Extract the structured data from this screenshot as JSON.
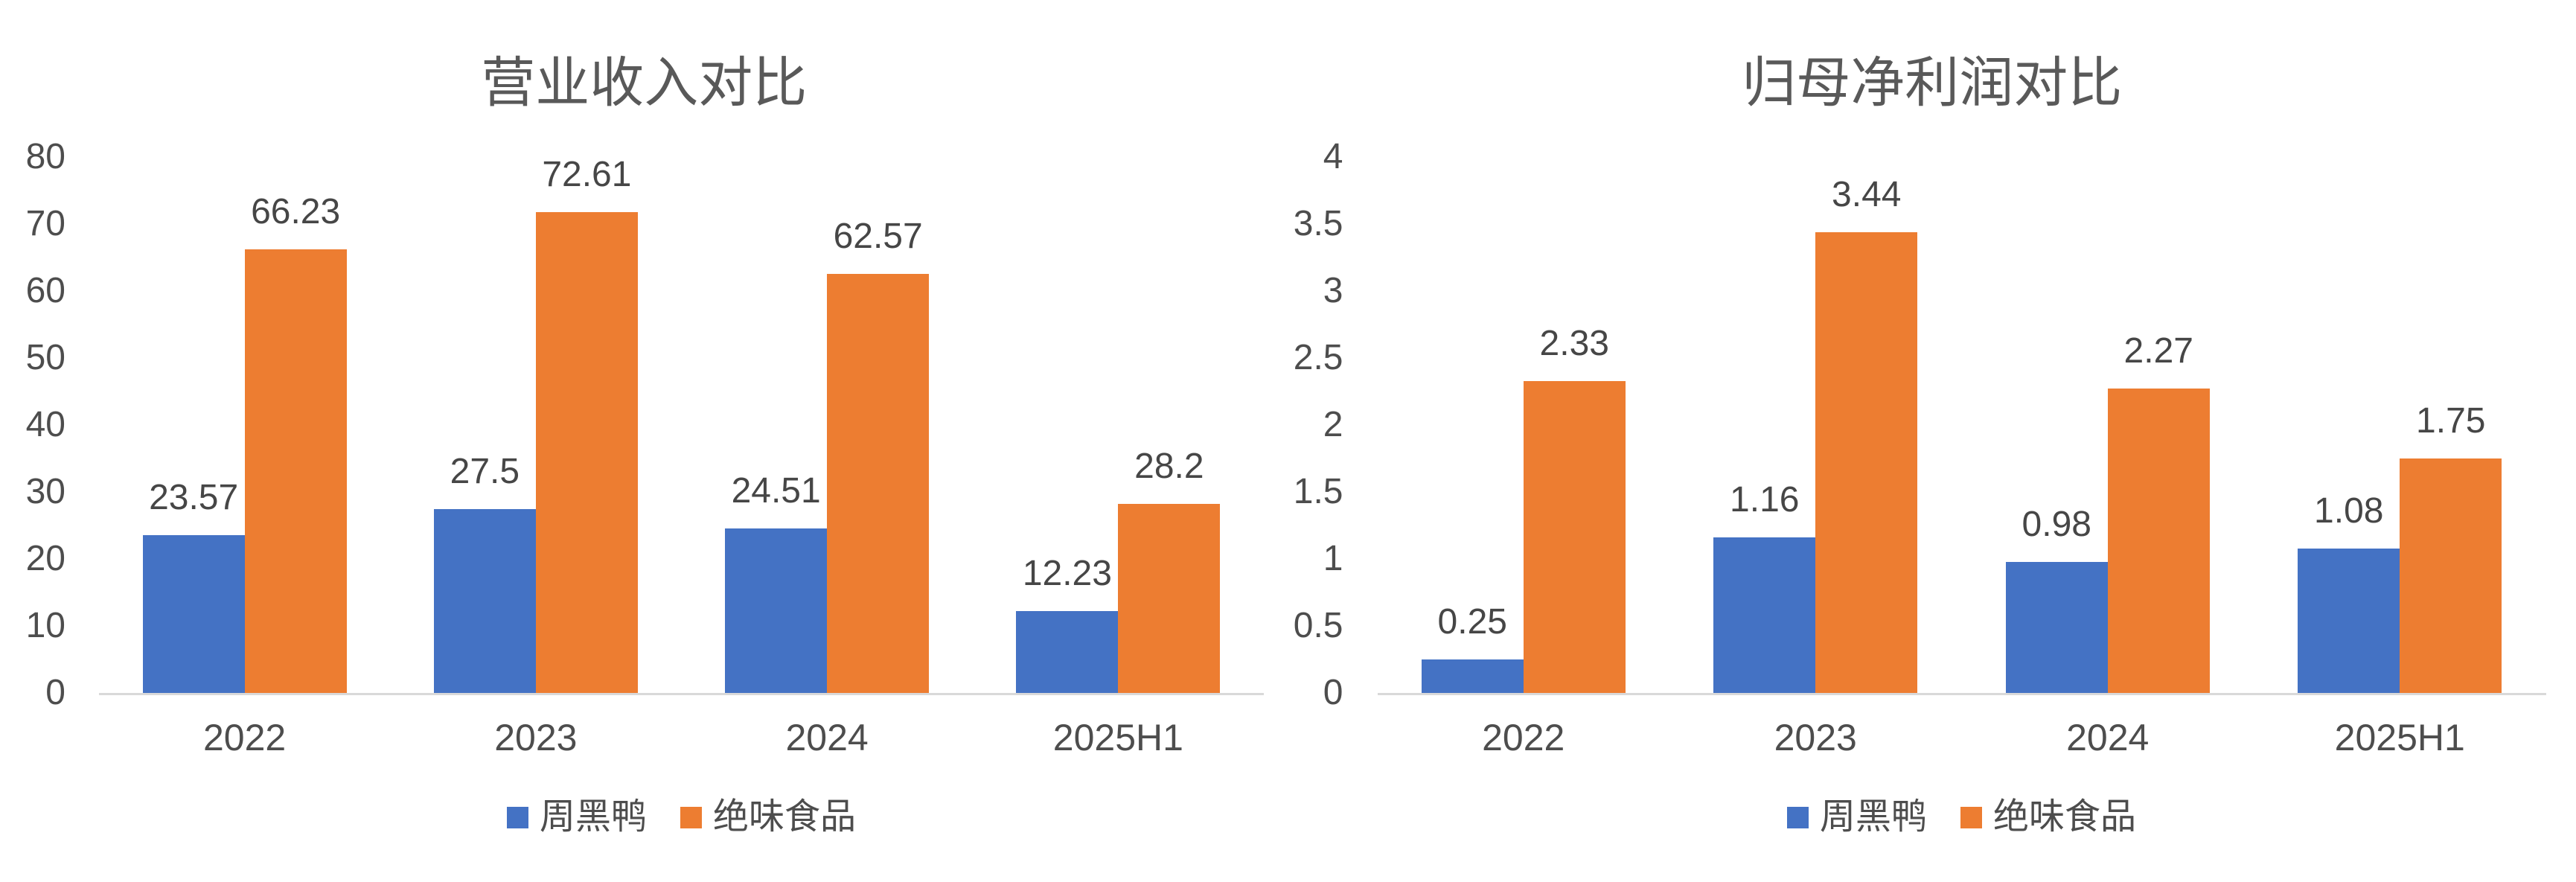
{
  "page": {
    "background": "#ffffff"
  },
  "styles": {
    "series_blue": "#4472C4",
    "series_orange": "#ED7D31",
    "axis_line_color": "#d9d9d9",
    "title_color": "#595959",
    "axis_label_color": "#4d4d4d",
    "value_label_color": "#464646"
  },
  "legend": {
    "position": "bottom",
    "items": [
      {
        "label": "周黑鸭",
        "color": "#4472C4"
      },
      {
        "label": "绝味食品",
        "color": "#ED7D31"
      }
    ]
  },
  "chart_data": [
    {
      "type": "bar",
      "title": "营业收入对比",
      "categories": [
        "2022",
        "2023",
        "2024",
        "2025H1"
      ],
      "series": [
        {
          "name": "周黑鸭",
          "color": "#4472C4",
          "values": [
            23.57,
            27.5,
            24.51,
            12.23
          ]
        },
        {
          "name": "绝味食品",
          "color": "#ED7D31",
          "values": [
            66.23,
            72.61,
            62.57,
            28.2
          ]
        }
      ],
      "xlabel": "",
      "ylabel": "",
      "ylim": [
        0,
        80
      ],
      "ytick_step": 10,
      "yticks": [
        "80",
        "70",
        "60",
        "50",
        "40",
        "30",
        "20",
        "10",
        "0"
      ],
      "grid": false,
      "data_labels": true,
      "legend_position": "bottom"
    },
    {
      "type": "bar",
      "title": "归母净利润对比",
      "categories": [
        "2022",
        "2023",
        "2024",
        "2025H1"
      ],
      "series": [
        {
          "name": "周黑鸭",
          "color": "#4472C4",
          "values": [
            0.25,
            1.16,
            0.98,
            1.08
          ]
        },
        {
          "name": "绝味食品",
          "color": "#ED7D31",
          "values": [
            2.33,
            3.44,
            2.27,
            1.75
          ]
        }
      ],
      "xlabel": "",
      "ylabel": "",
      "ylim": [
        0,
        4
      ],
      "ytick_step": 0.5,
      "yticks": [
        "4",
        "3.5",
        "3",
        "2.5",
        "2",
        "1.5",
        "1",
        "0.5",
        "0"
      ],
      "grid": false,
      "data_labels": true,
      "legend_position": "bottom"
    }
  ]
}
